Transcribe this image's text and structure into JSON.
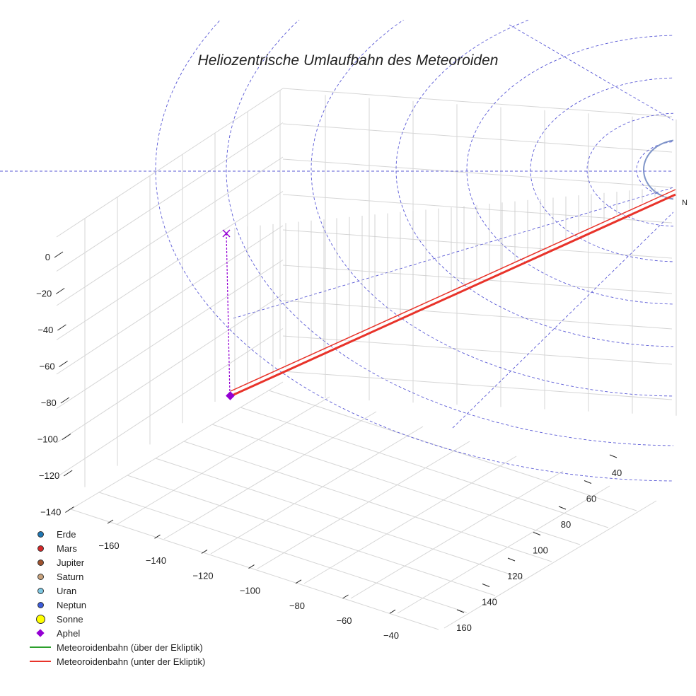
{
  "chart_data": {
    "type": "scatter",
    "title": "Heliozentrische Umlaufbahn des Meteoroiden",
    "xlabel": "",
    "ylabel": "",
    "zlabel": "",
    "z_ticks": [
      "0",
      "−20",
      "−40",
      "−60",
      "−80",
      "−100",
      "−120",
      "−140"
    ],
    "x_ticks": [
      "−160",
      "−140",
      "−120",
      "−100",
      "−80",
      "−60",
      "−40"
    ],
    "y_ticks": [
      "40",
      "60",
      "80",
      "100",
      "120",
      "140",
      "160"
    ],
    "annotation": "N",
    "grid": true,
    "legend_position": "bottom-left",
    "legend": [
      {
        "label": "Erde",
        "kind": "dot",
        "color": "#1f77b4"
      },
      {
        "label": "Mars",
        "kind": "dot",
        "color": "#d62728"
      },
      {
        "label": "Jupiter",
        "kind": "dot",
        "color": "#a0522d"
      },
      {
        "label": "Saturn",
        "kind": "dot",
        "color": "#c8a27c"
      },
      {
        "label": "Uran",
        "kind": "dot",
        "color": "#7ec8e3"
      },
      {
        "label": "Neptun",
        "kind": "dot",
        "color": "#3b5bdb"
      },
      {
        "label": "Sonne",
        "kind": "sun",
        "color": "#ffff00"
      },
      {
        "label": "Aphel",
        "kind": "diamond",
        "color": "#9400d3"
      },
      {
        "label": "Meteoroidenbahn (über der Ekliptik)",
        "kind": "line",
        "color": "#2ca02c"
      },
      {
        "label": "Meteoroidenbahn (unter der Ekliptik)",
        "kind": "line",
        "color": "#e8332a"
      }
    ],
    "colors": {
      "orbit_dashed": "#5a5ad6",
      "orbit_solid": "#7f95c8",
      "trajectory": "#e8332a",
      "aphel": "#9400d3",
      "grid": "#d6d6d6"
    }
  }
}
